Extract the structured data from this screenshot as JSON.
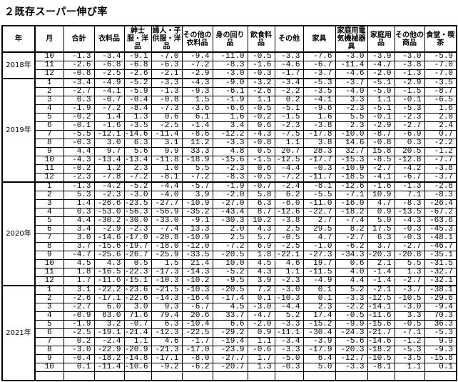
{
  "title": "２既存スーパー伸び率",
  "headers": [
    "年",
    "月",
    "合計",
    "衣料品",
    "紳士服・洋品",
    "婦人・子供服・洋品",
    "その他の衣料品",
    "身の回り品",
    "飲食料品",
    "その他",
    "家具",
    "家庭用電気機械器具",
    "家庭用品",
    "その他の商品",
    "食堂・喫茶"
  ],
  "groups": [
    {
      "year": "2018年",
      "rows": [
        {
          "m": "10",
          "v": [
            "-1.3",
            "-3.4",
            "-9.1",
            "-7.0",
            "-9.4",
            "-11.0",
            "-0.5",
            "-3.3",
            "-7.6",
            "-3.0",
            "-3.9",
            "-3.0",
            "-5.9"
          ]
        },
        {
          "m": "11",
          "v": [
            "-2.6",
            "-6.8",
            "-6.8",
            "-6.3",
            "-7.2",
            "-8.3",
            "-1.6",
            "-4.6",
            "-6.7",
            "-11.4",
            "-4.7",
            "-3.8",
            "-7.0"
          ]
        },
        {
          "m": "12",
          "v": [
            "-0.8",
            "-2.5",
            "-2.6",
            "-2.1",
            "-2.9",
            "-3.0",
            "-0.3",
            "-1.7",
            "-3.7",
            "-4.6",
            "-2.0",
            "-1.3",
            "-7.0"
          ]
        }
      ]
    },
    {
      "year": "2019年",
      "rows": [
        {
          "m": "1",
          "v": [
            "-3.4",
            "-4.9",
            "-5.2",
            "-3.3",
            "-4.3",
            "-9.0",
            "-3.2",
            "-3.4",
            "-5.3",
            "-3.7",
            "-5.1",
            "-2.9",
            "-3.5"
          ]
        },
        {
          "m": "2",
          "v": [
            "-2.7",
            "-4.1",
            "-5.9",
            "-1.3",
            "-9.3",
            "-6.1",
            "-2.6",
            "-2.2",
            "-3.5",
            "-4.0",
            "-5.0",
            "-1.5",
            "-8.7"
          ]
        },
        {
          "m": "3",
          "v": [
            "0.3",
            "-0.7",
            "-0.4",
            "-0.8",
            "1.5",
            "-1.9",
            "1.1",
            "0.2",
            "-4.1",
            "3.3",
            "1.1",
            "-0.1",
            "-6.5"
          ]
        },
        {
          "m": "4",
          "v": [
            "-1.9",
            "-7.2",
            "-8.4",
            "-7.3",
            "-3.6",
            "-6.6",
            "-0.5",
            "-5.1",
            "-9.6",
            "-2.3",
            "-5.1",
            "-5.3",
            "1.6"
          ]
        },
        {
          "m": "5",
          "v": [
            "-0.2",
            "1.4",
            "1.3",
            "0.6",
            "6.1",
            "1.6",
            "-0.2",
            "-1.5",
            "1.6",
            "5.5",
            "-0.1",
            "-2.3",
            "2.0"
          ]
        },
        {
          "m": "6",
          "v": [
            "-0.1",
            "-1.6",
            "-3.5",
            "-2.5",
            "-1.4",
            "3.4",
            "0.6",
            "-2.3",
            "-3.8",
            "2.3",
            "-2.9",
            "-2.7",
            "2.4"
          ]
        },
        {
          "m": "7",
          "v": [
            "-5.5",
            "-12.1",
            "-14.6",
            "-11.4",
            "-8.6",
            "-12.2",
            "-4.3",
            "-7.5",
            "-17.8",
            "-10.0",
            "-8.7",
            "-6.9",
            "0.7"
          ]
        },
        {
          "m": "8",
          "v": [
            "-0.3",
            "3.0",
            "6.3",
            "3.1",
            "11.2",
            "-3.3",
            "-0.8",
            "1.1",
            "3.8",
            "14.6",
            "-0.8",
            "0.3",
            "-2.2"
          ]
        },
        {
          "m": "9",
          "v": [
            "4.4",
            "9.7",
            "5.6",
            "9.9",
            "33.3",
            "4.8",
            "0.5",
            "20.7",
            "28.3",
            "32.7",
            "15.8",
            "20.5",
            "-1.2"
          ]
        },
        {
          "m": "10",
          "v": [
            "-4.3",
            "-13.4",
            "-13.4",
            "-11.8",
            "-18.9",
            "-15.6",
            "-1.5",
            "-12.5",
            "-17.7",
            "-15.3",
            "-8.5",
            "-12.8",
            "-7.7"
          ]
        },
        {
          "m": "11",
          "v": [
            "-0.2",
            "1.2",
            "2.3",
            "1.0",
            "5.5",
            "-2.3",
            "0.6",
            "-4.4",
            "-0.3",
            "-10.9",
            "-2.7",
            "-4.2",
            "-3.8"
          ]
        },
        {
          "m": "12",
          "v": [
            "-2.3",
            "-7.8",
            "-7.2",
            "-8.1",
            "-7.2",
            "-8.3",
            "-0.5",
            "-7.2",
            "-11.7",
            "-18.5",
            "-4.1",
            "-6.7",
            "-3.7"
          ]
        }
      ]
    },
    {
      "year": "2020年",
      "rows": [
        {
          "m": "1",
          "v": [
            "-1.3",
            "-4.2",
            "-5.2",
            "-4.4",
            "-5.7",
            "-1.9",
            "-0.7",
            "-2.4",
            "-8.1",
            "-12.6",
            "-1.6",
            "-1.3",
            "-2.8"
          ]
        },
        {
          "m": "2",
          "v": [
            "5.3",
            "-2.3",
            "-3.0",
            "-4.0",
            "3.9",
            "-2.0",
            "5.8",
            "6.2",
            "-5.5",
            "-7.1",
            "10.9",
            "7.1",
            "-8.3"
          ]
        },
        {
          "m": "3",
          "v": [
            "1.4",
            "-26.6",
            "-23.5",
            "-27.7",
            "-10.9",
            "-27.0",
            "6.3",
            "-6.0",
            "-11.0",
            "-16.0",
            "4.7",
            "-8.3",
            "-26.4"
          ]
        },
        {
          "m": "4",
          "v": [
            "0.3",
            "-53.0",
            "-56.3",
            "-56.9",
            "-35.2",
            "-43.4",
            "8.7",
            "-12.6",
            "-22.7",
            "-18.2",
            "0.9",
            "-13.5",
            "-67.2"
          ]
        },
        {
          "m": "5",
          "v": [
            "4.4",
            "-30.2",
            "-30.0",
            "-33.0",
            "-9.1",
            "-30.3",
            "10.2",
            "-3.8",
            "2.7",
            "-7.4",
            "5.0",
            "-4.3",
            "-63.6"
          ]
        },
        {
          "m": "6",
          "v": [
            "3.4",
            "-2.9",
            "-2.3",
            "-7.4",
            "13.3",
            "2.0",
            "4.3",
            "2.5",
            "29.5",
            "8.2",
            "17.5",
            "-0.3",
            "-45.3"
          ]
        },
        {
          "m": "7",
          "v": [
            "3.0",
            "-14.6",
            "-17.0",
            "-20.8",
            "-10.9",
            "2.5",
            "5.7",
            "-0.5",
            "4.7",
            "-2.7",
            "6.3",
            "-0.3",
            "-48.1"
          ]
        },
        {
          "m": "8",
          "v": [
            "3.7",
            "-15.6",
            "-19.7",
            "-18.0",
            "-12.0",
            "-7.2",
            "6.9",
            "-2.5",
            "-1.0",
            "-6.2",
            "3.7",
            "-2.7",
            "-46.7"
          ]
        },
        {
          "m": "9",
          "v": [
            "-4.7",
            "-25.6",
            "-26.7",
            "-25.9",
            "-33.5",
            "-20.5",
            "1.8",
            "-22.1",
            "-27.3",
            "-34.3",
            "-20.3",
            "-20.8",
            "-35.1"
          ]
        },
        {
          "m": "10",
          "v": [
            "4.5",
            "4.3",
            "0.5",
            "1.5",
            "21.4",
            "10.0",
            "4.5",
            "4.6",
            "19.7",
            "0.6",
            "2.1",
            "5.5",
            "-31.5"
          ]
        },
        {
          "m": "11",
          "v": [
            "1.8",
            "-16.5",
            "-22.3",
            "-17.3",
            "-14.3",
            "-5.2",
            "4.3",
            "1.1",
            "-11.5",
            "4.0",
            "-1.4",
            "1.3",
            "-32.7"
          ]
        },
        {
          "m": "12",
          "v": [
            "1.7",
            "-11.6",
            "-15.1",
            "-10.3",
            "-10.2",
            "-9.5",
            "3.9",
            "-2.3",
            "-4.9",
            "4.4",
            "-1.4",
            "-2.7",
            "-32.1"
          ]
        }
      ]
    },
    {
      "year": "2021年",
      "rows": [
        {
          "m": "1",
          "v": [
            "3.1",
            "-22.2",
            "-23.6",
            "-21.5",
            "-10.3",
            "-20.5",
            "7.2",
            "-3.0",
            "0.1",
            "5.2",
            "-2.1",
            "-3.7",
            "-38.1"
          ]
        },
        {
          "m": "2",
          "v": [
            "-2.6",
            "-17.1",
            "-22.6",
            "-14.3",
            "-16.4",
            "-17.4",
            "0.1",
            "-10.3",
            "0.1",
            "-3.3",
            "-12.5",
            "-10.5",
            "-29.6"
          ]
        },
        {
          "m": "3",
          "v": [
            "-2.7",
            "6.0",
            "3.0",
            "9.3",
            "-6.7",
            "4.5",
            "-3.0",
            "-4.4",
            "2.3",
            "-2.2",
            "-14.1",
            "-3.0",
            "-9.4"
          ]
        },
        {
          "m": "4",
          "v": [
            "-0.9",
            "63.0",
            "71.6",
            "79.4",
            "20.6",
            "33.7",
            "-4.7",
            "5.2",
            "17.4",
            "-0.5",
            "-11.6",
            "3.3",
            "70.3"
          ]
        },
        {
          "m": "5",
          "v": [
            "-1.9",
            "3.2",
            "-0.7",
            "6.3",
            "-10.4",
            "6.6",
            "-2.0",
            "-3.3",
            "-15.2",
            "-9.9",
            "-15.6",
            "-0.5",
            "36.3"
          ]
        },
        {
          "m": "6",
          "v": [
            "-2.5",
            "-19.1",
            "-21.4",
            "-12.3",
            "-22.5",
            "-29.2",
            "0.9",
            "-11.1",
            "-30.4",
            "-24.3",
            "-21.7",
            "-7.1",
            "-5.3"
          ]
        },
        {
          "m": "7",
          "v": [
            "0.2",
            "-2.4",
            "1.1",
            "4.6",
            "-1.7",
            "-19.4",
            "1.1",
            "-3.4",
            "-3.9",
            "-5.6",
            "-14.6",
            "-1.2",
            "9.9"
          ]
        },
        {
          "m": "8",
          "v": [
            "-3.0",
            "-22.9",
            "-20.9",
            "-21.3",
            "-17.0",
            "-23.9",
            "-0.6",
            "-3.3",
            "-17.9",
            "-20.3",
            "-18.2",
            "-5.3",
            "-9.3"
          ]
        },
        {
          "m": "9",
          "v": [
            "-0.4",
            "-18.2",
            "-14.8",
            "-17.1",
            "-8.0",
            "-27.7",
            "1.7",
            "-5.0",
            "6.4",
            "-12.7",
            "-10.5",
            "-3.5",
            "-15.8"
          ]
        },
        {
          "m": "10",
          "v": [
            "0.1",
            "-11.4",
            "-10.6",
            "-9.2",
            "-6.2",
            "-20.7",
            "1.3",
            "-0.3",
            "5.0",
            "-3.3",
            "-8.1",
            "1.1",
            "0.1"
          ]
        },
        {
          "m": "",
          "v": [
            "",
            "",
            "",
            "",
            "",
            "",
            "",
            "",
            "",
            "",
            "",
            "",
            ""
          ]
        }
      ]
    }
  ]
}
